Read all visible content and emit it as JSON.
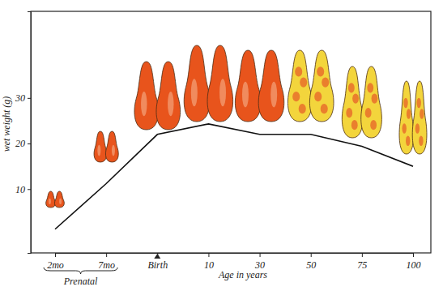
{
  "chart_data": {
    "type": "line",
    "categories": [
      "2mo",
      "7mo",
      "Birth",
      "10",
      "30",
      "50",
      "75",
      "100"
    ],
    "values": [
      1.2,
      11.2,
      22,
      24.3,
      22,
      22,
      19.4,
      15
    ],
    "color": "#111111",
    "xlabel": "Age in years",
    "ylabel": "wet weight (g)",
    "ylim": [
      -4,
      49
    ],
    "yticks": [
      10,
      20,
      30
    ],
    "annotations": [
      "Prenatal"
    ],
    "grid": false
  }
}
